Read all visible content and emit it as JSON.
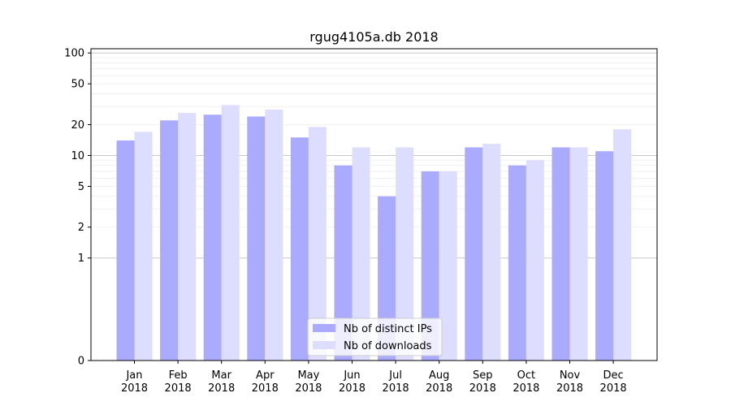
{
  "chart_data": {
    "type": "bar",
    "title": "rgug4105a.db 2018",
    "xlabel": "",
    "ylabel": "",
    "yscale": "symlog",
    "ylim": [
      0,
      110
    ],
    "yticks": [
      0,
      1,
      2,
      5,
      10,
      20,
      50,
      100
    ],
    "categories": [
      [
        "Jan",
        "2018"
      ],
      [
        "Feb",
        "2018"
      ],
      [
        "Mar",
        "2018"
      ],
      [
        "Apr",
        "2018"
      ],
      [
        "May",
        "2018"
      ],
      [
        "Jun",
        "2018"
      ],
      [
        "Jul",
        "2018"
      ],
      [
        "Aug",
        "2018"
      ],
      [
        "Sep",
        "2018"
      ],
      [
        "Oct",
        "2018"
      ],
      [
        "Nov",
        "2018"
      ],
      [
        "Dec",
        "2018"
      ]
    ],
    "series": [
      {
        "name": "Nb of distinct IPs",
        "color": "#aaaaff",
        "values": [
          14,
          22,
          25,
          24,
          15,
          8,
          4,
          7,
          12,
          8,
          12,
          11
        ]
      },
      {
        "name": "Nb of downloads",
        "color": "#ddddff",
        "values": [
          17,
          26,
          31,
          28,
          19,
          12,
          12,
          7,
          13,
          9,
          12,
          18
        ]
      }
    ],
    "legend_position": "bottom-center",
    "grid": "y-major-and-minor"
  }
}
